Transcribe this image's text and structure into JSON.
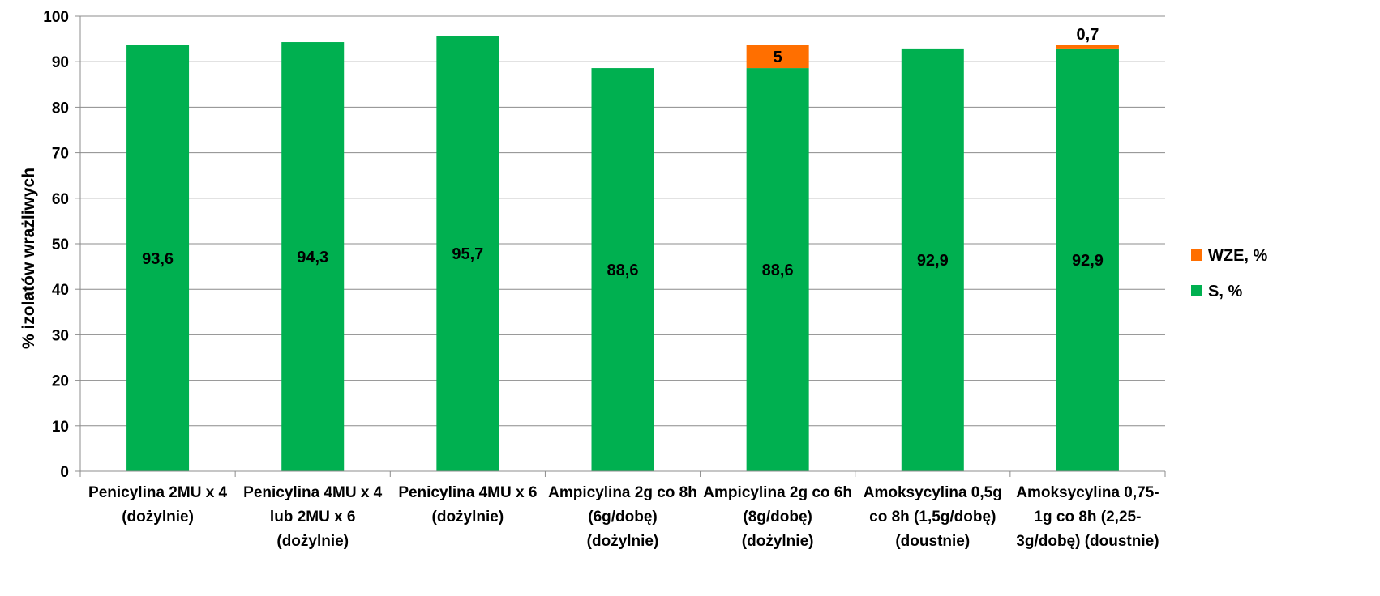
{
  "chart_data": {
    "type": "bar",
    "stacked": true,
    "ylabel": "% izolatów wrażliwych",
    "ylim": [
      0,
      100
    ],
    "yticks": [
      0,
      10,
      20,
      30,
      40,
      50,
      60,
      70,
      80,
      90,
      100
    ],
    "grid": true,
    "legend_position": "right",
    "categories": [
      [
        "Penicylina 2MU x 4",
        "(dożylnie)"
      ],
      [
        "Penicylina 4MU x 4",
        "lub 2MU x 6",
        "(dożylnie)"
      ],
      [
        "Penicylina 4MU x 6",
        "(dożylnie)"
      ],
      [
        "Ampicylina 2g co 8h",
        "(6g/dobę)",
        "(dożylnie)"
      ],
      [
        "Ampicylina 2g co 6h",
        "(8g/dobę)",
        "(dożylnie)"
      ],
      [
        "Amoksycylina 0,5g",
        "co 8h (1,5g/dobę)",
        "(doustnie)"
      ],
      [
        "Amoksycylina 0,75-",
        "1g co 8h (2,25-",
        "3g/dobę) (doustnie)"
      ]
    ],
    "series": [
      {
        "name": "S, %",
        "color": "#00B050",
        "values": [
          93.6,
          94.3,
          95.7,
          88.6,
          88.6,
          92.9,
          92.9
        ],
        "labels": [
          "93,6",
          "94,3",
          "95,7",
          "88,6",
          "88,6",
          "92,9",
          "92,9"
        ]
      },
      {
        "name": "WZE, %",
        "color": "#FF6F00",
        "values": [
          null,
          null,
          null,
          null,
          5,
          null,
          0.7
        ],
        "labels": [
          "",
          "",
          "",
          "",
          "5",
          "",
          "0,7"
        ]
      }
    ],
    "legend_order": [
      "WZE, %",
      "S, %"
    ]
  }
}
